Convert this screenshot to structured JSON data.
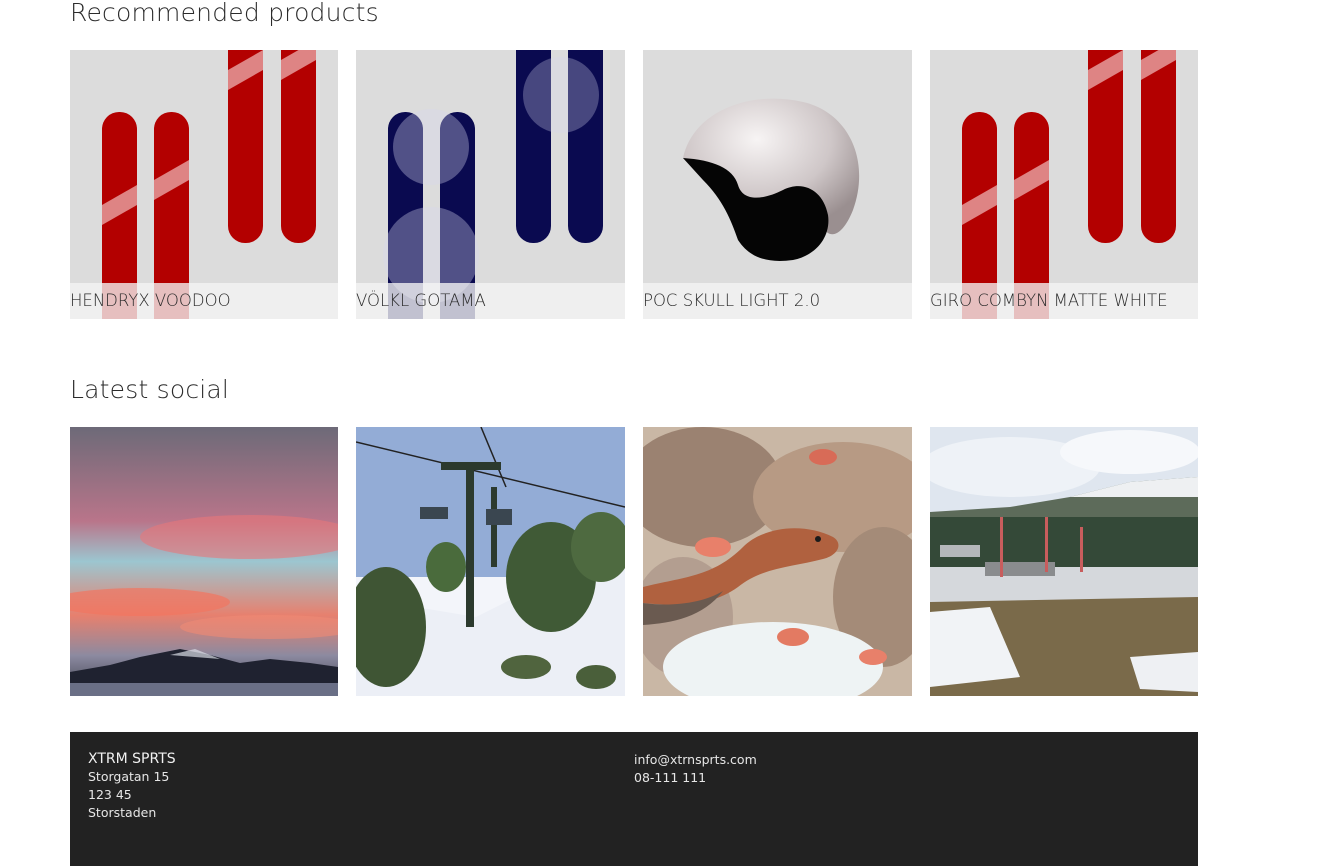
{
  "recommended": {
    "title": "Recommended products",
    "items": [
      {
        "name": "HENDRYX VOODOO",
        "image": "red-skis"
      },
      {
        "name": "VÖLKL GOTAMA",
        "image": "navy-skis"
      },
      {
        "name": "POC SKULL LIGHT 2.0",
        "image": "helmet"
      },
      {
        "name": "GIRO COMBYN MATTE WHITE",
        "image": "red-skis"
      }
    ]
  },
  "social": {
    "title": "Latest social",
    "items": [
      {
        "image": "sunset-lake"
      },
      {
        "image": "ski-lift"
      },
      {
        "image": "underwater-eel"
      },
      {
        "image": "ski-resort"
      }
    ]
  },
  "footer": {
    "brand": "XTRM SPRTS",
    "address": [
      "Storgatan 15",
      "123 45",
      "Storstaden"
    ],
    "email": "info@xtrnsprts.com",
    "phone": "08-111 111"
  },
  "colors": {
    "footer_bg": "#222222",
    "card_bg": "#dcdcdc",
    "ski_red": "#b30000",
    "ski_navy": "#0a0a50"
  }
}
